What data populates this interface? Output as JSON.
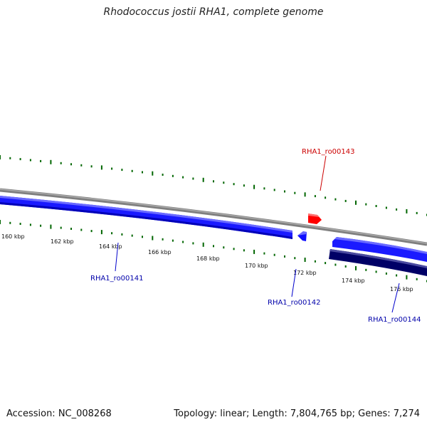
{
  "title": "Rhodococcus jostii RHA1, complete genome",
  "footer": {
    "accession": "Accession: NC_008268",
    "topology": "Topology: linear; Length: 7,804,765 bp; Genes: 7,274"
  },
  "scale_ticks": [
    "160 kbp",
    "162 kbp",
    "164 kbp",
    "166 kbp",
    "168 kbp",
    "170 kbp",
    "172 kbp",
    "174 kbp",
    "176 kbp"
  ],
  "genes": [
    {
      "name": "RHA1_ro00141",
      "strand": "reverse",
      "color": "#0000cc"
    },
    {
      "name": "RHA1_ro00142",
      "strand": "reverse",
      "color": "#0000cc"
    },
    {
      "name": "RHA1_ro00143",
      "strand": "forward",
      "color": "#cc0000"
    },
    {
      "name": "RHA1_ro00144",
      "strand": "reverse",
      "color": "#0000cc"
    }
  ],
  "colors": {
    "backbone": "#808080",
    "gene_blue": "#0000ff",
    "gene_dark": "#000066",
    "gene_red": "#ff0000",
    "gc_ticks": "#006600"
  }
}
